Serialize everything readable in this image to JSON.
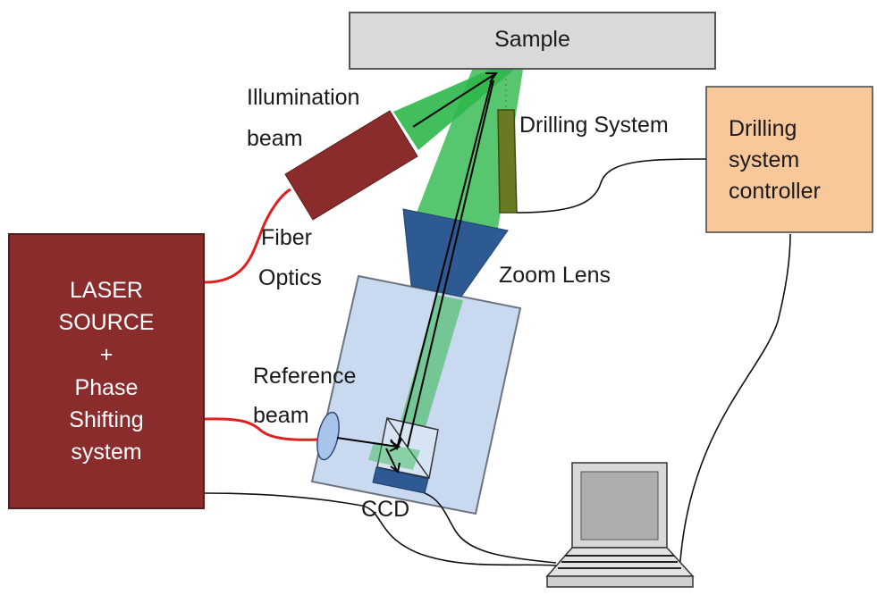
{
  "sample_label": "Sample",
  "illumination_label": [
    "Illumination",
    "beam"
  ],
  "drilling_system_label": "Drilling System",
  "controller_lines": [
    "Drilling",
    "system",
    "controller"
  ],
  "fiber_label": [
    "Fiber",
    "Optics"
  ],
  "zoom_lens_label": "Zoom Lens",
  "laser_lines": [
    "LASER",
    "SOURCE",
    "+",
    "Phase",
    "Shifting",
    "system"
  ],
  "reference_label": [
    "Reference",
    "beam"
  ],
  "ccd_label": "CCD",
  "colors": {
    "laser_box": "#8b2c2c",
    "controller_box": "#f8c79a",
    "sample_box": "#d9d9d9",
    "beam_green": "#2db84a",
    "lens_blue": "#2e5a93",
    "fiber_red": "#e02020",
    "housing": "#c9d9ef"
  }
}
